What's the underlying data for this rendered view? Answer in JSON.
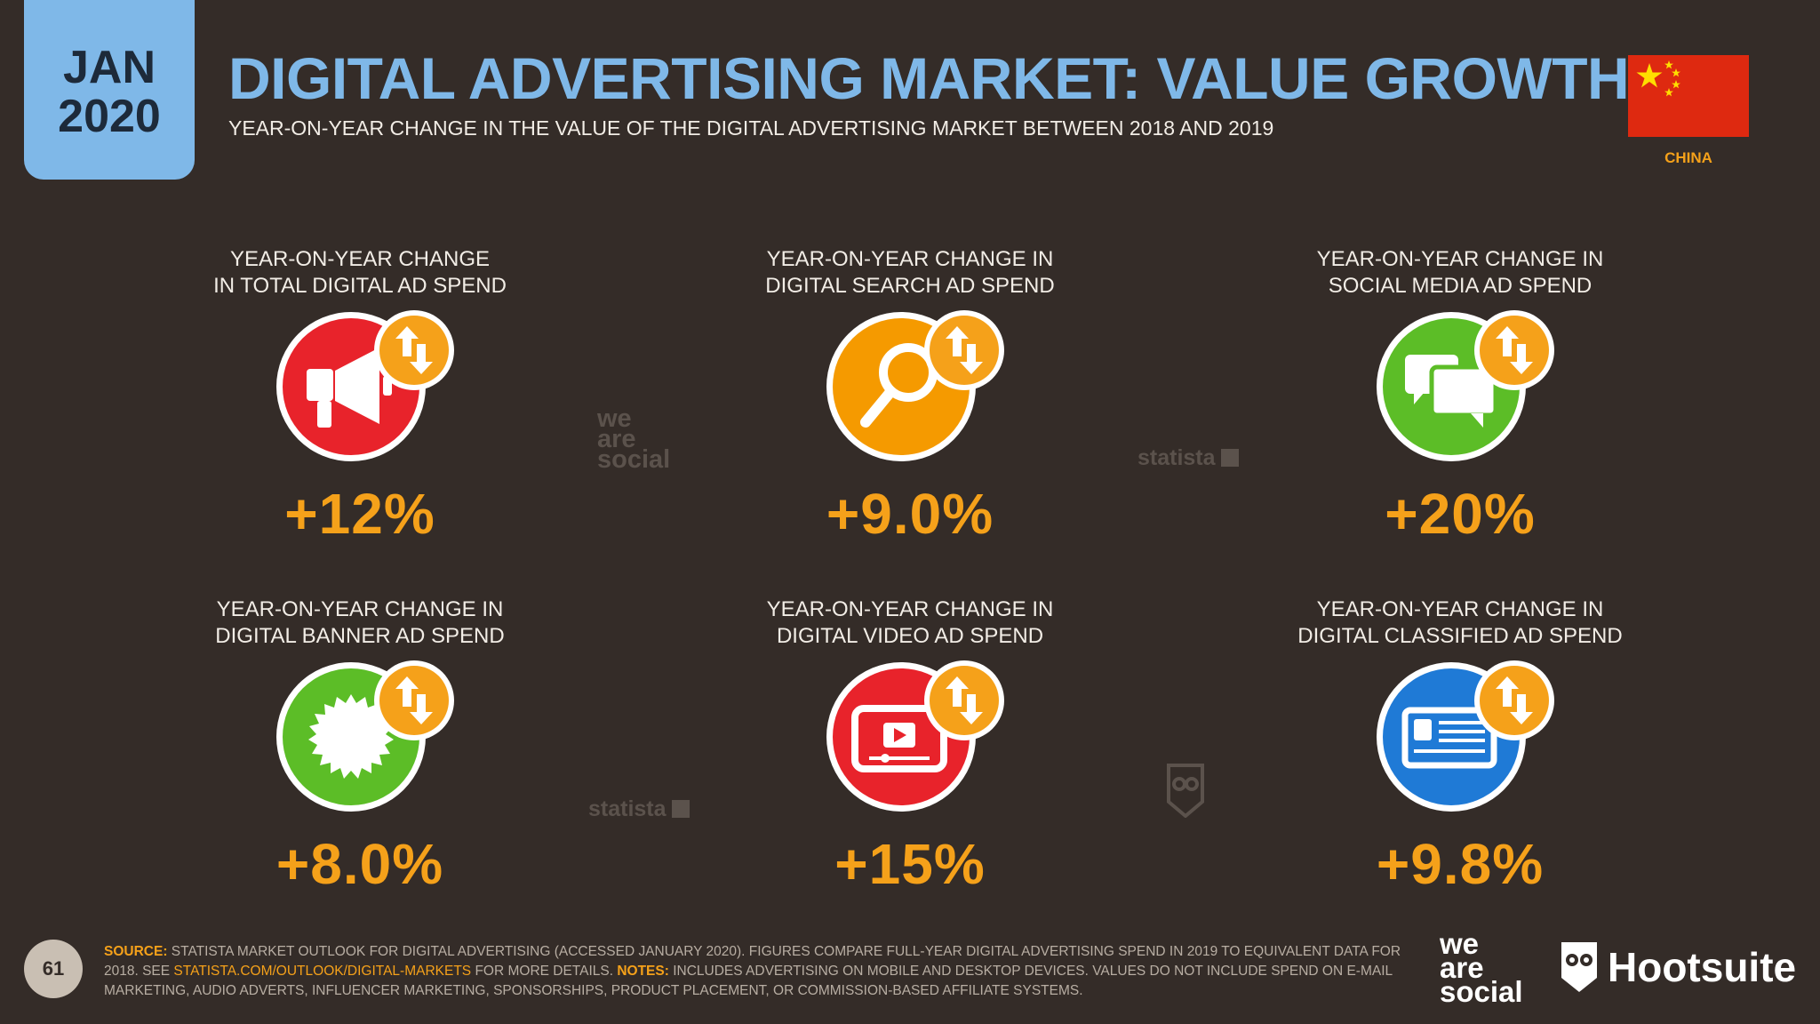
{
  "header": {
    "date_month": "JAN",
    "date_year": "2020",
    "title": "DIGITAL ADVERTISING MARKET: VALUE GROWTH",
    "subtitle": "YEAR-ON-YEAR CHANGE IN THE VALUE OF THE DIGITAL ADVERTISING MARKET BETWEEN 2018 AND 2019",
    "country": "CHINA"
  },
  "colors": {
    "background": "#342c28",
    "accent_blue": "#7fb8e8",
    "accent_orange": "#f5a11a",
    "red": "#e8232b",
    "icon_orange": "#f59a00",
    "green": "#5cbd27",
    "blue": "#1f7ad6"
  },
  "cards": [
    {
      "label": "YEAR-ON-YEAR CHANGE\nIN TOTAL DIGITAL AD SPEND",
      "value": "+12%",
      "icon": "megaphone-icon",
      "color": "#e8232b"
    },
    {
      "label": "YEAR-ON-YEAR CHANGE IN\nDIGITAL SEARCH AD SPEND",
      "value": "+9.0%",
      "icon": "magnifier-icon",
      "color": "#f59a00"
    },
    {
      "label": "YEAR-ON-YEAR CHANGE IN\nSOCIAL MEDIA AD SPEND",
      "value": "+20%",
      "icon": "chat-bubbles-icon",
      "color": "#5cbd27"
    },
    {
      "label": "YEAR-ON-YEAR CHANGE IN\nDIGITAL BANNER AD SPEND",
      "value": "+8.0%",
      "icon": "badge-seal-icon",
      "color": "#5cbd27"
    },
    {
      "label": "YEAR-ON-YEAR CHANGE IN\nDIGITAL VIDEO AD SPEND",
      "value": "+15%",
      "icon": "video-player-icon",
      "color": "#e8232b"
    },
    {
      "label": "YEAR-ON-YEAR CHANGE IN\nDIGITAL CLASSIFIED AD SPEND",
      "value": "+9.8%",
      "icon": "classified-ad-icon",
      "color": "#1f7ad6"
    }
  ],
  "watermarks": {
    "wearesocial": [
      "we",
      "are",
      "social"
    ],
    "statista": "statista"
  },
  "footer": {
    "page_number": "61",
    "source_label": "SOURCE:",
    "source_text": " STATISTA MARKET OUTLOOK FOR DIGITAL ADVERTISING (ACCESSED JANUARY 2020). FIGURES COMPARE FULL-YEAR DIGITAL ADVERTISING SPEND IN 2019 TO EQUIVALENT DATA FOR 2018. SEE ",
    "link": "STATISTA.COM/OUTLOOK/DIGITAL-MARKETS",
    "mid_text": " FOR MORE DETAILS. ",
    "notes_label": "NOTES:",
    "notes_text": " INCLUDES ADVERTISING ON MOBILE AND DESKTOP DEVICES. VALUES DO NOT INCLUDE SPEND ON E-MAIL MARKETING, AUDIO ADVERTS, INFLUENCER MARKETING, SPONSORSHIPS, PRODUCT PLACEMENT, OR COMMISSION-BASED AFFILIATE SYSTEMS.",
    "logo_wearesocial": [
      "we",
      "are",
      "social"
    ],
    "logo_hootsuite": "Hootsuite"
  }
}
